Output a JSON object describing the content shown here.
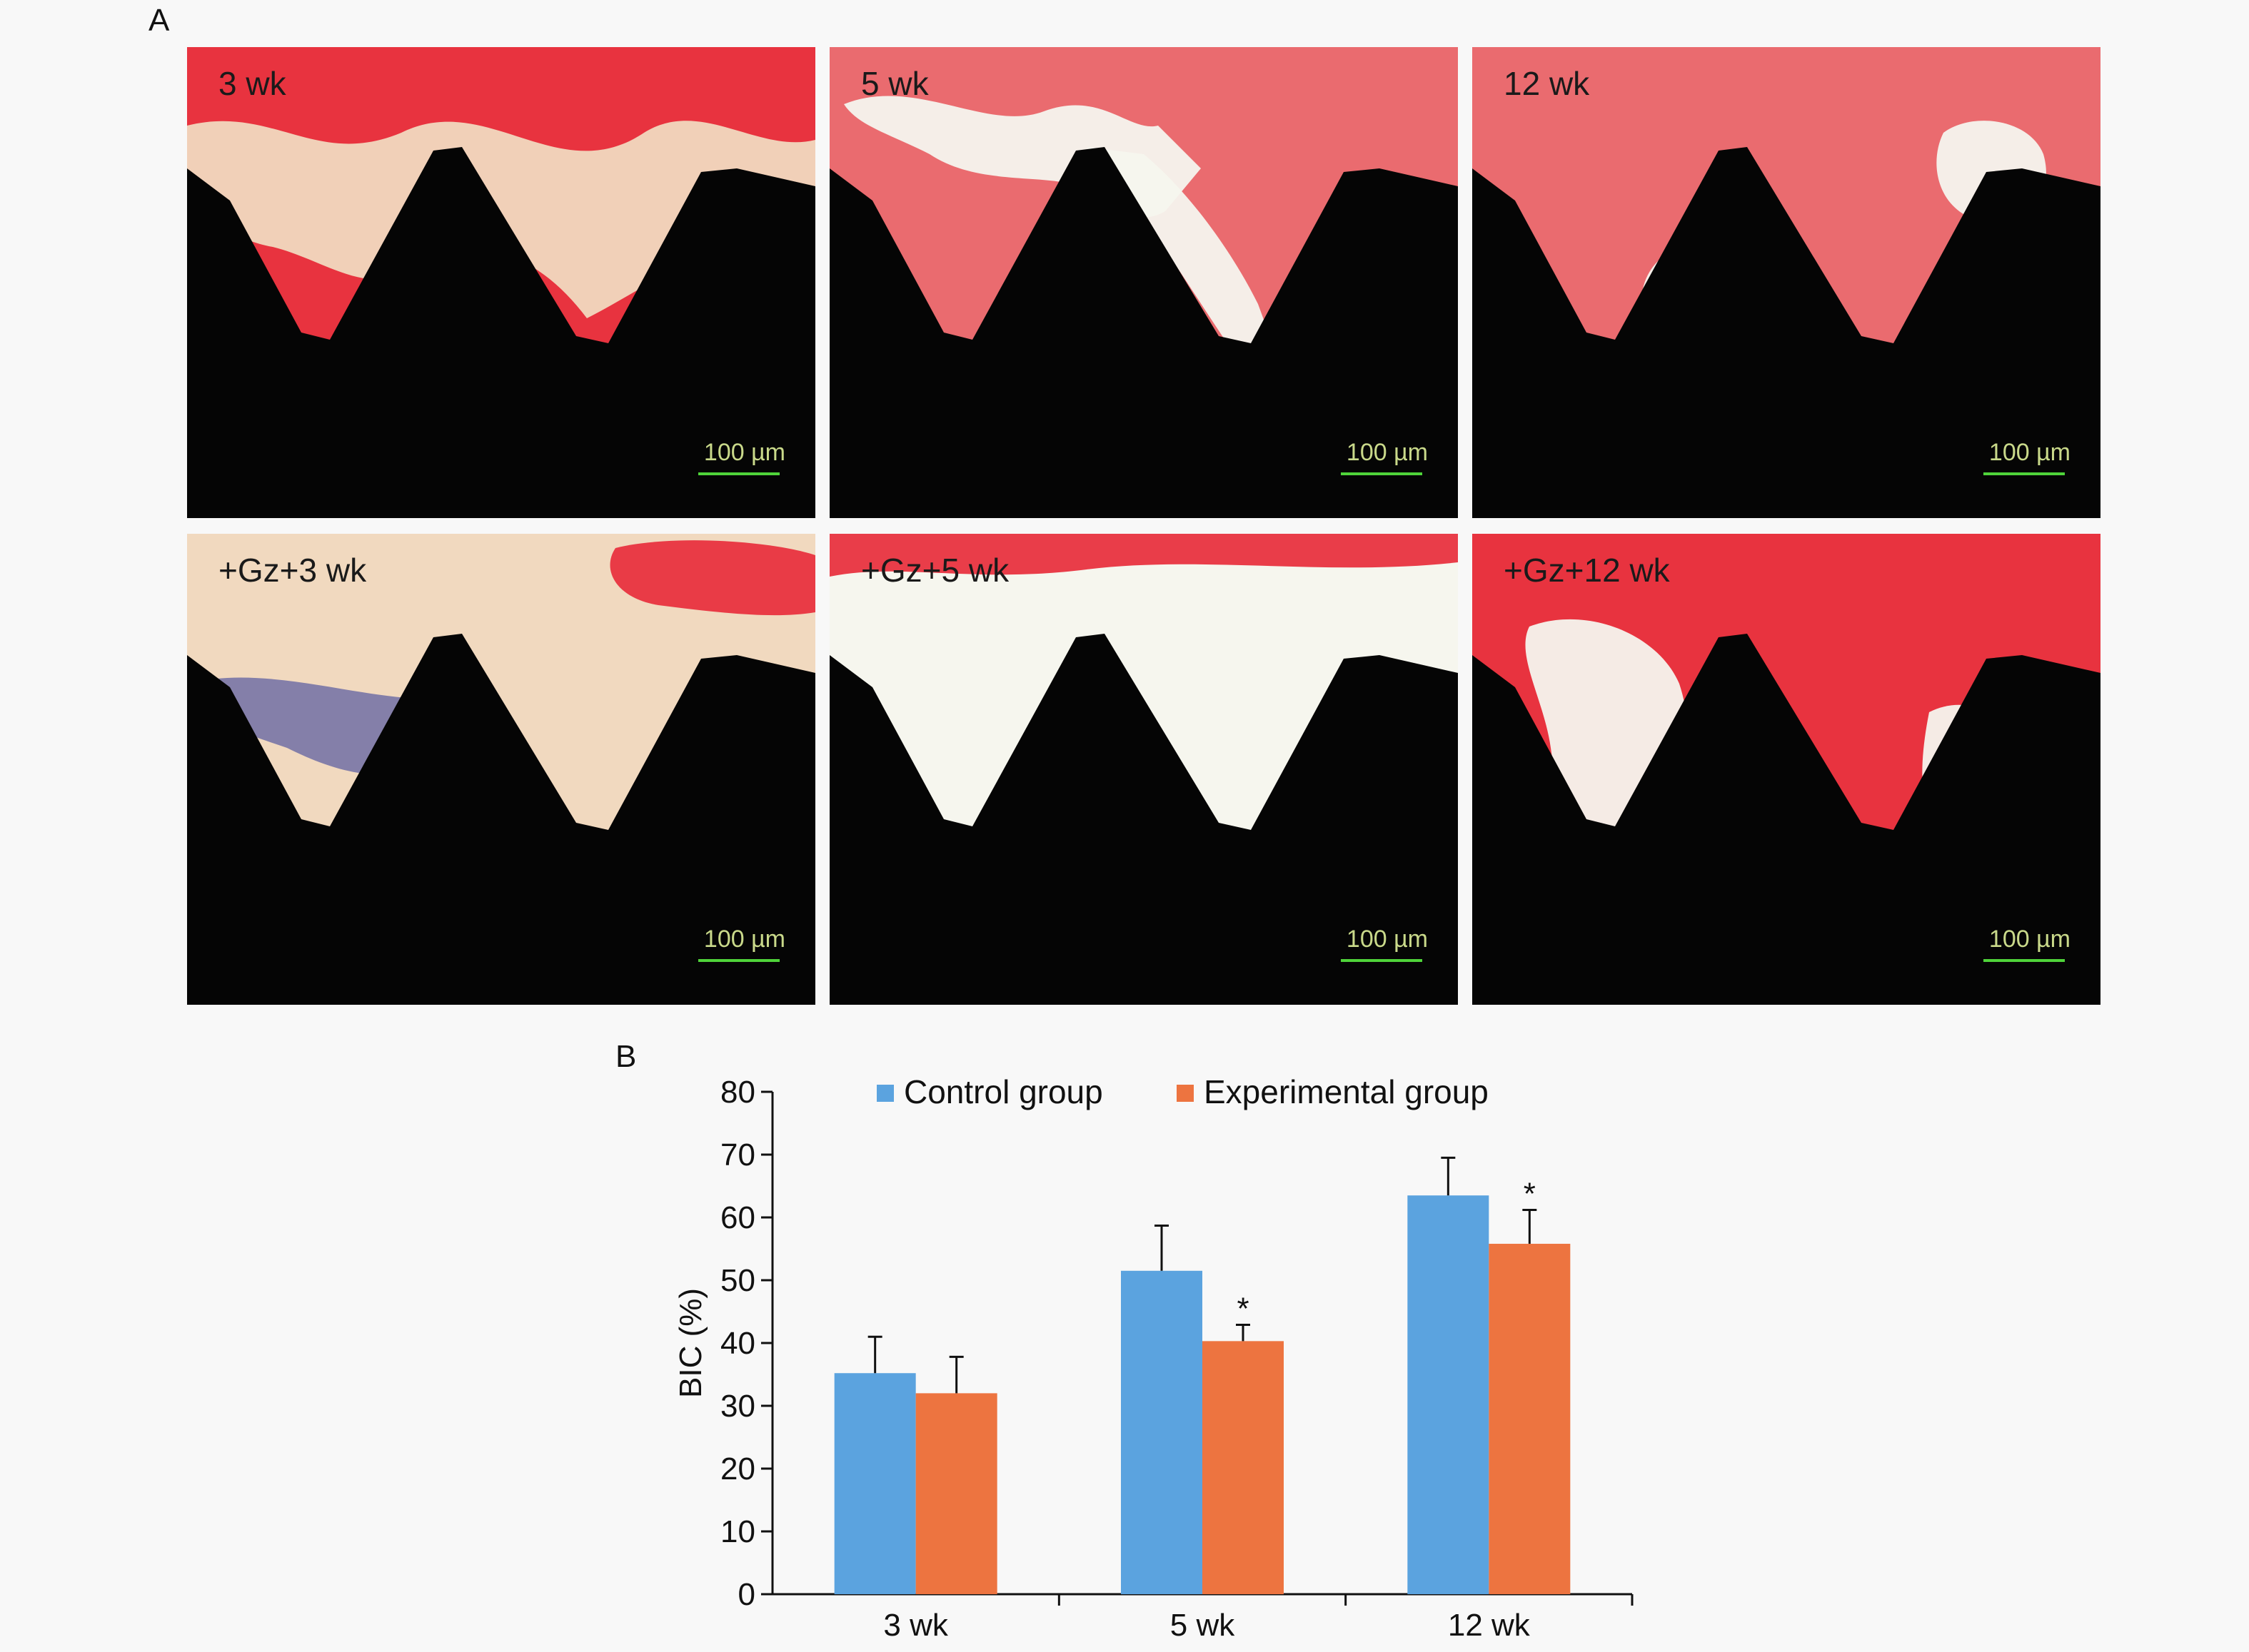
{
  "panels": {
    "a": "A",
    "b": "B"
  },
  "micrographs": [
    {
      "label": "3 wk",
      "scale": "100 µm",
      "variant": 0
    },
    {
      "label": "5 wk",
      "scale": "100 µm",
      "variant": 1
    },
    {
      "label": "12 wk",
      "scale": "100 µm",
      "variant": 2
    },
    {
      "label": "+Gz+3 wk",
      "scale": "100 µm",
      "variant": 3
    },
    {
      "label": "+Gz+5 wk",
      "scale": "100 µm",
      "variant": 4
    },
    {
      "label": "+Gz+12 wk",
      "scale": "100 µm",
      "variant": 5
    }
  ],
  "colors": {
    "bone": "#e8333f",
    "bone_pink": "#ea6b6f",
    "implant": "#050505",
    "soft_tissue": "#f1d9bf",
    "marrow": "#f6f6ee",
    "control": "#5ba3df",
    "experimental": "#ed7440"
  },
  "chart_data": {
    "type": "bar",
    "categories": [
      "3 wk",
      "5 wk",
      "12 wk"
    ],
    "series": [
      {
        "name": "Control group",
        "color": "#5ba3df",
        "values": [
          35.2,
          51.5,
          63.5
        ],
        "errors": [
          5.8,
          7.2,
          6.0
        ],
        "significance": [
          "",
          "",
          ""
        ]
      },
      {
        "name": "Experimental group",
        "color": "#ed7440",
        "values": [
          32.0,
          40.3,
          55.8
        ],
        "errors": [
          5.8,
          2.6,
          5.4
        ],
        "significance": [
          "",
          "*",
          "*"
        ]
      }
    ],
    "ylabel": "BIC (%)",
    "ylim": [
      0,
      80
    ],
    "yticks": [
      0,
      10,
      20,
      30,
      40,
      50,
      60,
      70,
      80
    ],
    "legend": "top",
    "grid": false
  }
}
